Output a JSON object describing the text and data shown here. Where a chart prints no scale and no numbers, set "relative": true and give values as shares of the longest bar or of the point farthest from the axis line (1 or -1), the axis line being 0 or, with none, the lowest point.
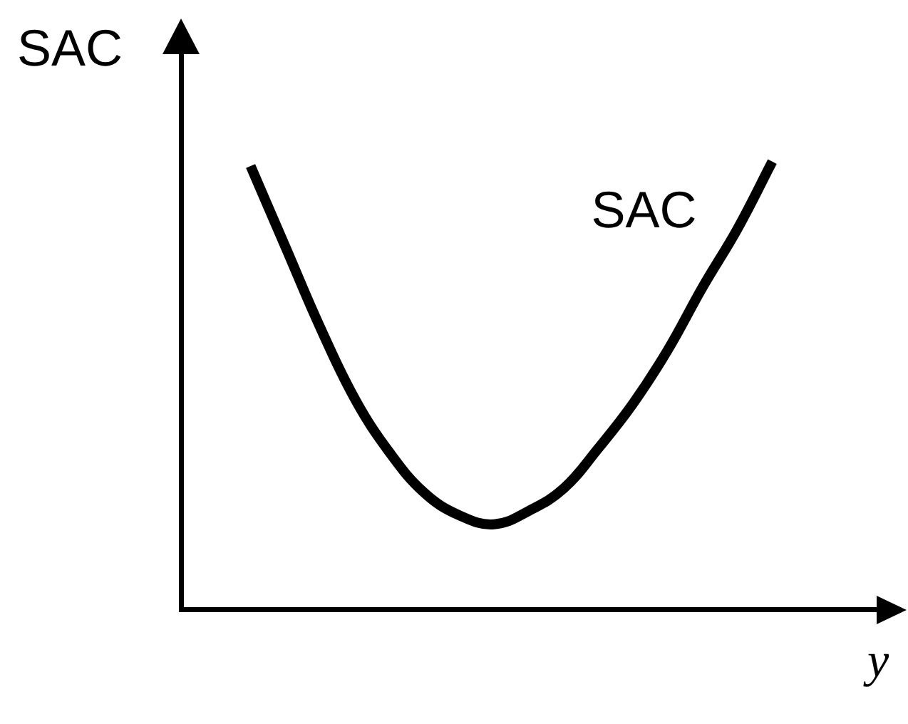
{
  "chart_data": {
    "type": "line",
    "xlabel": "y",
    "ylabel": "SAC",
    "relative": true,
    "categories": [
      null,
      null,
      null,
      null,
      null,
      null,
      null,
      null,
      null,
      null,
      null,
      null,
      null,
      null,
      null,
      null,
      null,
      null,
      null,
      null,
      null
    ],
    "series": [
      {
        "name": "SAC",
        "color": "#000000",
        "values": [
          null,
          null,
          0.99,
          0.81,
          0.63,
          0.47,
          0.35,
          0.26,
          0.21,
          0.19,
          0.22,
          0.27,
          0.36,
          0.46,
          0.58,
          0.72,
          0.85,
          1,
          null,
          null,
          null
        ]
      }
    ]
  }
}
